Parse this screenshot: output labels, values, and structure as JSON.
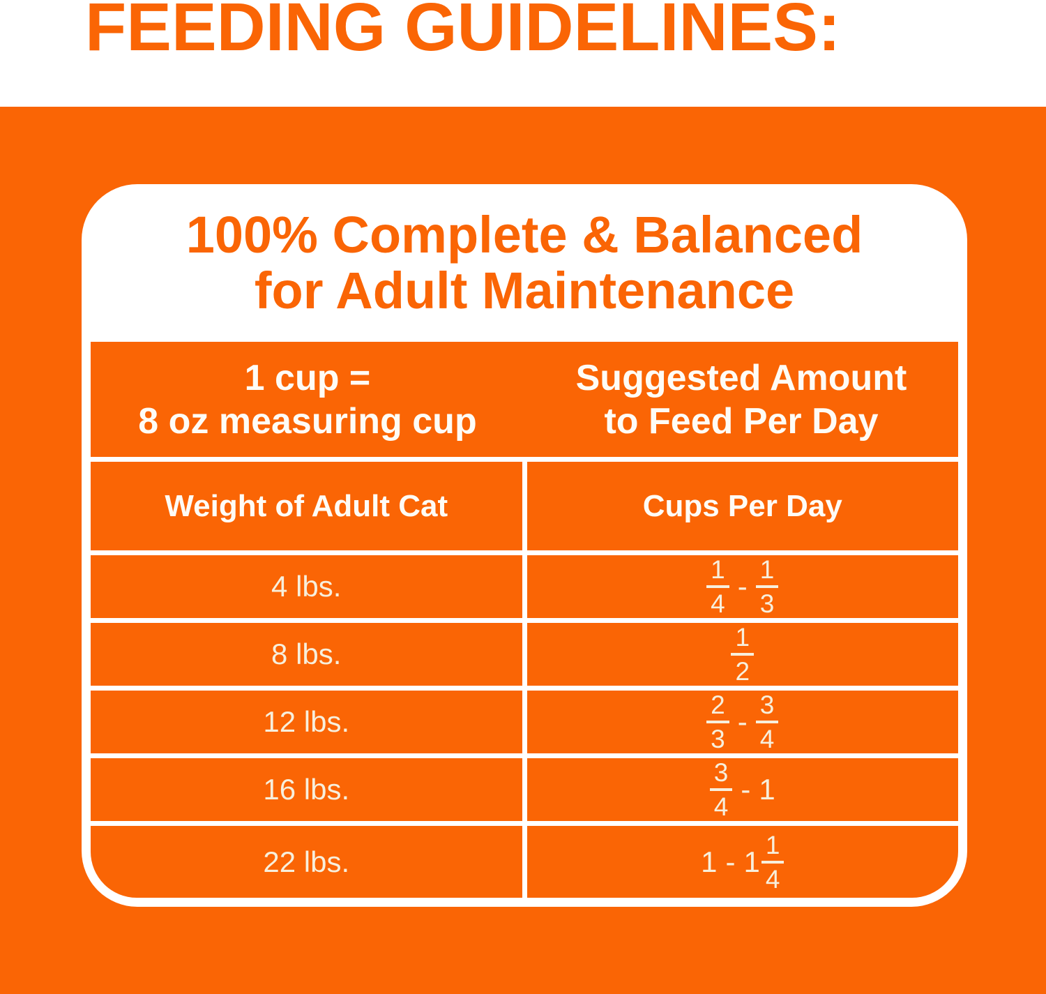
{
  "title": "FEEDING GUIDELINES:",
  "card": {
    "heading": {
      "line1": "100% Complete & Balanced",
      "line2": "for Adult Maintenance"
    },
    "table": {
      "header": {
        "left": {
          "line1": "1 cup =",
          "line2": "8 oz measuring cup"
        },
        "right": {
          "line1": "Suggested Amount",
          "line2": "to Feed Per Day"
        }
      },
      "columns": {
        "left": "Weight of Adult Cat",
        "right": "Cups Per Day"
      },
      "rows": [
        {
          "weight": "4 lbs.",
          "cups": "1/4 - 1/3"
        },
        {
          "weight": "8 lbs.",
          "cups": "1/2"
        },
        {
          "weight": "12 lbs.",
          "cups": "2/3 - 3/4"
        },
        {
          "weight": "16 lbs.",
          "cups": "3/4 - 1"
        },
        {
          "weight": "22 lbs.",
          "cups": "1 - 1 1/4"
        }
      ]
    }
  },
  "colors": {
    "orange": "#FA6505",
    "card_white": "#FFFFFF",
    "gridline_cream": "#F8F3E7",
    "header_text": "#FEFCF6",
    "data_text": "#F7EFDC"
  }
}
